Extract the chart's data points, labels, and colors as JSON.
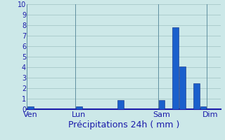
{
  "title": "",
  "xlabel": "Précipitations 24h ( mm )",
  "background_color": "#cce8e8",
  "bar_color": "#1a5fcc",
  "bar_edge_color": "#0a2a80",
  "grid_color": "#a8c8c8",
  "vline_color": "#6090a0",
  "axis_color": "#1a1aaa",
  "text_color": "#1a1aaa",
  "ylim": [
    0,
    10
  ],
  "yticks": [
    0,
    1,
    2,
    3,
    4,
    5,
    6,
    7,
    8,
    9,
    10
  ],
  "num_bars": 28,
  "bar_values": [
    0.25,
    0.0,
    0.0,
    0.0,
    0.0,
    0.0,
    0.0,
    0.25,
    0.0,
    0.0,
    0.0,
    0.0,
    0.0,
    0.9,
    0.0,
    0.0,
    0.0,
    0.0,
    0.0,
    0.9,
    0.0,
    7.8,
    4.1,
    0.0,
    2.5,
    0.3,
    0.0,
    0.0
  ],
  "day_labels": [
    "Ven",
    "Lun",
    "Sam",
    "Dim"
  ],
  "day_positions": [
    0,
    7,
    19,
    26
  ],
  "xlabel_fontsize": 9,
  "tick_fontsize": 7,
  "label_fontsize": 8
}
